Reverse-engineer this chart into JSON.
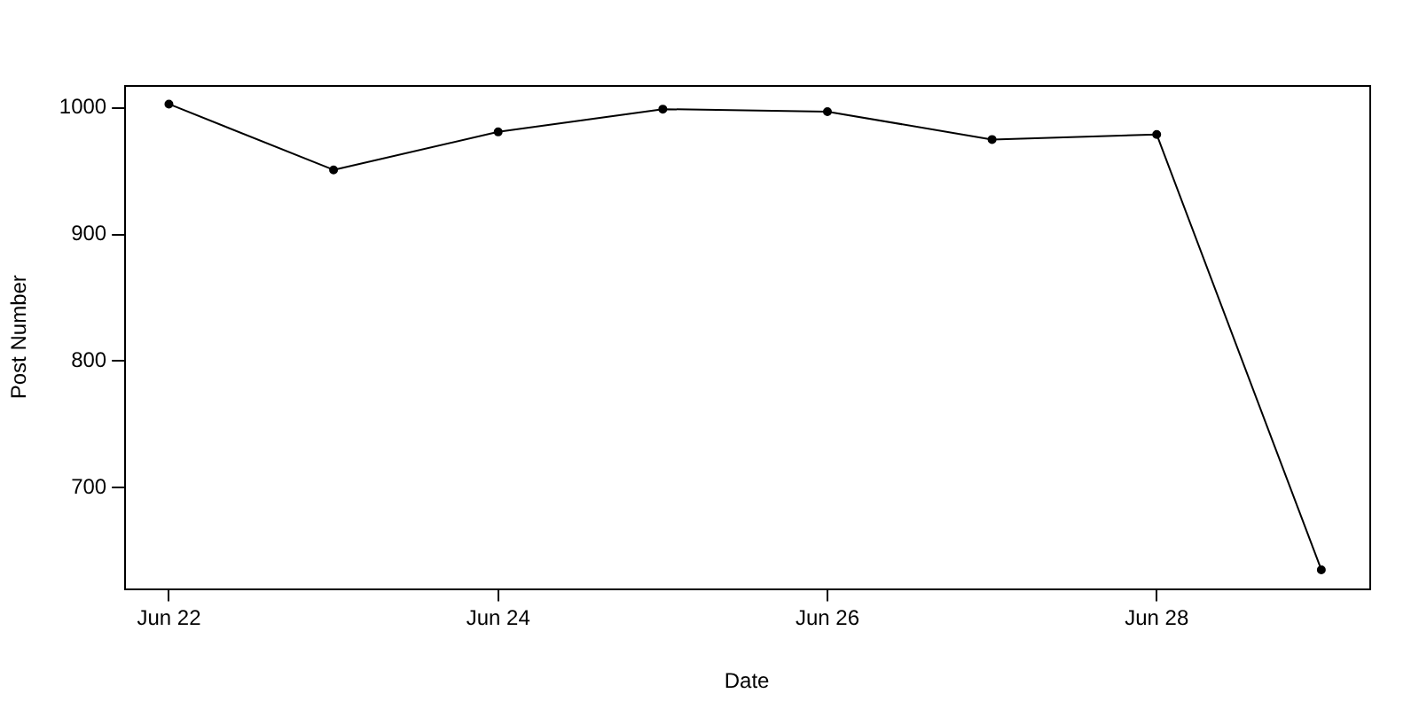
{
  "chart_data": {
    "type": "line",
    "xlabel": "Date",
    "ylabel": "Post Number",
    "x": [
      "--06-22",
      "--06-23",
      "--06-24",
      "--06-25",
      "--06-26",
      "--06-27",
      "--06-28",
      "--06-29"
    ],
    "values": [
      1003,
      951,
      981,
      999,
      997,
      975,
      979,
      635
    ],
    "color": "#000000",
    "marker": "circle",
    "line_style": "solid",
    "grid": false,
    "legend": false,
    "xlim": [
      "--06-21T17:30",
      "--06-29T07:00"
    ],
    "xticks": [
      {
        "value": "--06-22",
        "label": "Jun 22"
      },
      {
        "value": "--06-24",
        "label": "Jun 24"
      },
      {
        "value": "--06-26",
        "label": "Jun 26"
      },
      {
        "value": "--06-28",
        "label": "Jun 28"
      }
    ],
    "ylim": [
      620,
      1018
    ],
    "yticks": [
      700,
      800,
      900,
      1000
    ]
  }
}
